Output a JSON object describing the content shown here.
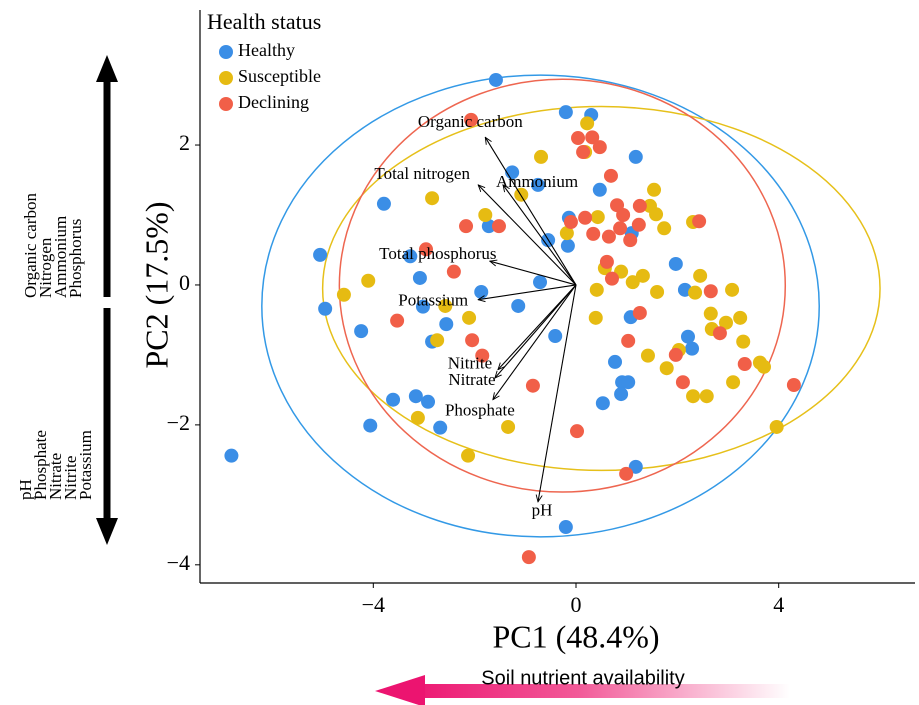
{
  "chart_data": {
    "type": "scatter",
    "xlabel": "PC1 (48.4%)",
    "ylabel": "PC2 (17.5%)",
    "xlim": [
      -7.42,
      6.69
    ],
    "ylim": [
      -4.26,
      3.93
    ],
    "xticks": [
      {
        "value": -4,
        "label": "−4"
      },
      0,
      4
    ],
    "yticks": [
      {
        "value": -4,
        "label": "−4"
      },
      {
        "value": -2,
        "label": "−2"
      },
      0,
      2
    ],
    "legend_title": "Health status",
    "legend_position": "top-left",
    "series": [
      {
        "name": "Healthy",
        "color": "#3b8ee6",
        "ellipse_color": "#3399e6",
        "ellipse": {
          "center": [
            -0.7,
            -0.3
          ],
          "radii": [
            5.5,
            3.3
          ]
        },
        "x": [
          -6.8,
          -5.05,
          -4.95,
          -4.24,
          -3.79,
          -4.06,
          -3.61,
          -3.16,
          -2.92,
          -2.68,
          -3.27,
          -3.02,
          -2.56,
          -2.84,
          -1.87,
          -1.72,
          -1.26,
          -0.75,
          -1.58,
          -1.14,
          -0.71,
          -0.41,
          -0.2,
          -0.14,
          -0.16,
          0.3,
          0.47,
          1.18,
          1.1,
          0.77,
          0.53,
          0.91,
          1.03,
          0.89,
          1.08,
          1.18,
          1.97,
          2.15,
          2.21,
          2.29,
          -0.2,
          -0.55,
          -3.08
        ],
        "y": [
          -2.44,
          0.43,
          -0.34,
          -0.66,
          1.16,
          -2.01,
          -1.64,
          -1.59,
          -1.67,
          -2.04,
          0.41,
          -0.31,
          -0.56,
          -0.81,
          -0.1,
          0.84,
          1.61,
          1.43,
          2.93,
          -0.3,
          0.04,
          -0.73,
          2.47,
          0.96,
          0.56,
          2.43,
          1.36,
          1.83,
          0.74,
          -1.1,
          -1.69,
          -1.39,
          -1.39,
          -1.56,
          -0.46,
          -2.6,
          0.3,
          -0.07,
          -0.74,
          -0.91,
          -3.46,
          0.64,
          0.1
        ]
      },
      {
        "name": "Susceptible",
        "color": "#e6bb12",
        "ellipse_color": "#e6c01a",
        "ellipse": {
          "center": [
            0.5,
            -0.05
          ],
          "radii": [
            5.5,
            2.6
          ]
        },
        "x": [
          -4.58,
          -4.1,
          -2.84,
          -3.12,
          -2.74,
          -2.58,
          -2.11,
          -2.13,
          -1.79,
          -1.08,
          -1.34,
          -0.69,
          0.18,
          0.22,
          0.43,
          0.41,
          0.57,
          0.89,
          1.32,
          1.12,
          1.46,
          1.54,
          1.58,
          1.74,
          1.42,
          1.6,
          1.79,
          2.31,
          2.45,
          2.35,
          2.66,
          2.68,
          2.96,
          3.08,
          3.24,
          3.3,
          3.1,
          3.63,
          3.71,
          2.31,
          2.58,
          2.03,
          3.96,
          -0.18,
          0.39
        ],
        "y": [
          -0.14,
          0.06,
          1.24,
          -1.9,
          -0.79,
          -0.3,
          -0.47,
          -2.44,
          1.0,
          1.29,
          -2.03,
          1.83,
          1.9,
          2.31,
          0.97,
          -0.07,
          0.24,
          0.19,
          0.13,
          0.04,
          1.13,
          1.36,
          1.01,
          0.81,
          -1.01,
          -0.1,
          -1.19,
          0.9,
          0.13,
          -0.11,
          -0.41,
          -0.63,
          -0.54,
          -0.07,
          -0.47,
          -0.81,
          -1.39,
          -1.11,
          -1.17,
          -1.59,
          -1.59,
          -0.93,
          -2.03,
          0.74,
          -0.47
        ]
      },
      {
        "name": "Declining",
        "color": "#f15f48",
        "ellipse_color": "#ee6650",
        "ellipse": {
          "center": [
            -0.27,
            -0.01
          ],
          "radii": [
            4.4,
            2.95
          ]
        },
        "x": [
          -3.53,
          -2.96,
          -2.41,
          -2.17,
          -2.07,
          -2.05,
          -1.85,
          -1.52,
          -0.85,
          0.04,
          0.32,
          0.47,
          -0.1,
          0.18,
          0.34,
          0.65,
          0.93,
          0.69,
          0.81,
          1.07,
          1.26,
          1.24,
          0.61,
          0.71,
          1.03,
          1.26,
          1.97,
          2.11,
          2.43,
          2.66,
          2.84,
          3.33,
          4.3,
          0.02,
          0.99,
          -0.93,
          0.14,
          0.87
        ],
        "y": [
          -0.51,
          0.51,
          0.19,
          0.84,
          2.36,
          -0.79,
          -1.01,
          0.84,
          -1.44,
          2.1,
          2.11,
          1.97,
          0.9,
          0.96,
          0.73,
          0.69,
          1.0,
          1.56,
          1.14,
          0.64,
          1.13,
          0.86,
          0.33,
          0.09,
          -0.8,
          -0.4,
          -1.0,
          -1.39,
          0.91,
          -0.09,
          -0.69,
          -1.13,
          -1.43,
          -2.09,
          -2.7,
          -3.89,
          1.9,
          0.81
        ]
      }
    ],
    "loadings": [
      {
        "name": "Organic carbon",
        "x": -1.79,
        "y": 2.11
      },
      {
        "name": "Total nitrogen",
        "x": -1.93,
        "y": 1.43
      },
      {
        "name": "Ammonium",
        "x": -1.44,
        "y": 1.43
      },
      {
        "name": "Total phosphorus",
        "x": -1.7,
        "y": 0.34
      },
      {
        "name": "Potassium",
        "x": -1.93,
        "y": -0.21
      },
      {
        "name": "Nitrite",
        "x": -1.54,
        "y": -1.21
      },
      {
        "name": "Nitrate",
        "x": -1.6,
        "y": -1.33
      },
      {
        "name": "Phosphate",
        "x": -1.64,
        "y": -1.64
      },
      {
        "name": "pH",
        "x": -0.75,
        "y": -3.1
      }
    ],
    "side_annotations": {
      "top": [
        "Organic carbon",
        "Nitrogen",
        "Ammonium",
        "Phosphorus"
      ],
      "bottom": [
        "pH",
        "Phosphate",
        "Nitrate",
        "Nitrite",
        "Potassium"
      ]
    },
    "bottom_annotation": "Soil nutrient availability"
  }
}
